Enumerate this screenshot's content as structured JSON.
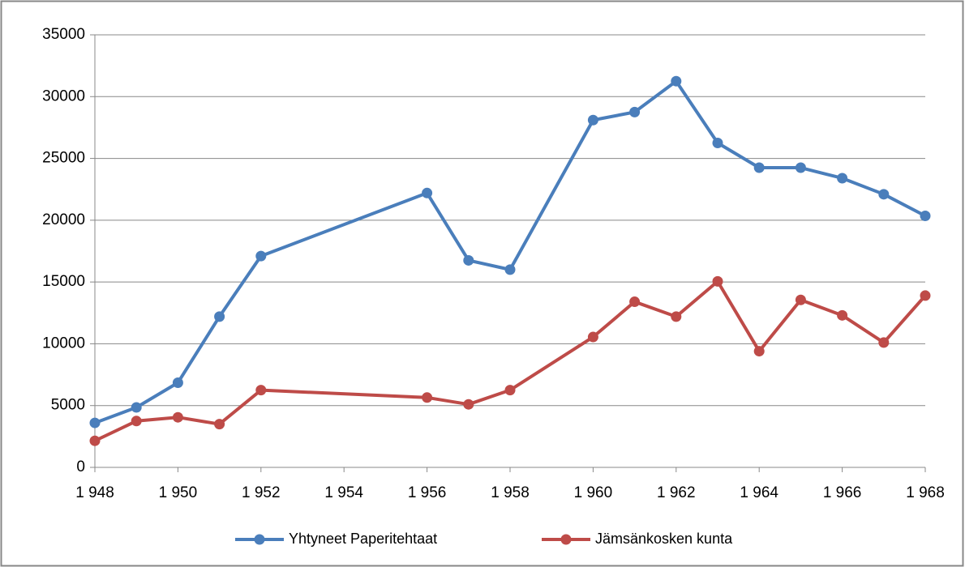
{
  "chart_data": {
    "type": "line",
    "x": [
      1948,
      1949,
      1950,
      1951,
      1952,
      1956,
      1957,
      1958,
      1960,
      1961,
      1962,
      1963,
      1964,
      1965,
      1966,
      1967,
      1968
    ],
    "series": [
      {
        "name": "Yhtyneet Paperitehtaat",
        "color": "#4a7ebb",
        "values": [
          3600,
          4850,
          6850,
          12200,
          17100,
          22200,
          16750,
          16000,
          28100,
          28750,
          31250,
          26250,
          24250,
          24250,
          23400,
          22100,
          20350
        ]
      },
      {
        "name": "Jämsänkosken kunta",
        "color": "#be4b48",
        "values": [
          2150,
          3750,
          4050,
          3500,
          6250,
          5650,
          5100,
          6250,
          10550,
          13400,
          12200,
          15050,
          9400,
          13550,
          12300,
          10100,
          13900
        ]
      }
    ],
    "xlim": [
      1948,
      1968
    ],
    "xticks": [
      {
        "value": 1948,
        "label": "1 948"
      },
      {
        "value": 1950,
        "label": "1 950"
      },
      {
        "value": 1952,
        "label": "1 952"
      },
      {
        "value": 1954,
        "label": "1 954"
      },
      {
        "value": 1956,
        "label": "1 956"
      },
      {
        "value": 1958,
        "label": "1 958"
      },
      {
        "value": 1960,
        "label": "1 960"
      },
      {
        "value": 1962,
        "label": "1 962"
      },
      {
        "value": 1964,
        "label": "1 964"
      },
      {
        "value": 1966,
        "label": "1 966"
      },
      {
        "value": 1968,
        "label": "1 968"
      }
    ],
    "ylim": [
      0,
      35000
    ],
    "yticks": [
      0,
      5000,
      10000,
      15000,
      20000,
      25000,
      30000,
      35000
    ],
    "grid": true,
    "legend": "bottom"
  }
}
